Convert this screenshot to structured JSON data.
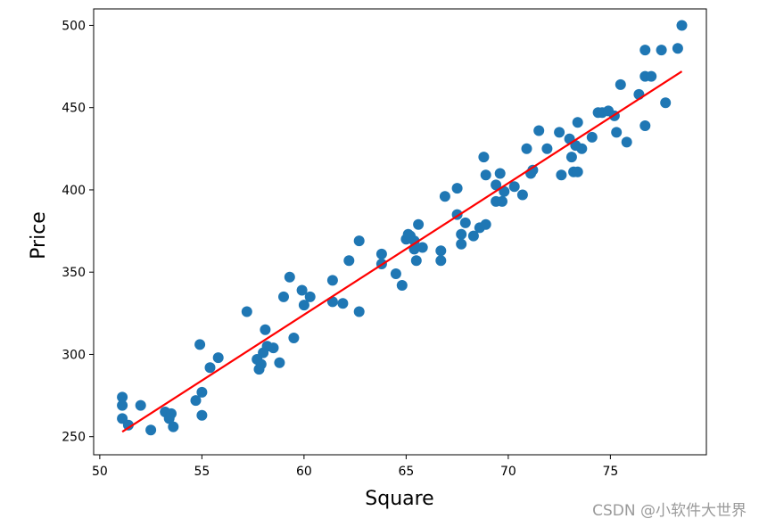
{
  "chart_data": {
    "type": "scatter",
    "xlabel": "Square",
    "ylabel": "Price",
    "xlim": [
      49.7,
      79.7
    ],
    "ylim": [
      239,
      510
    ],
    "xticks": [
      50,
      55,
      60,
      65,
      70,
      75
    ],
    "yticks": [
      250,
      300,
      350,
      400,
      450,
      500
    ],
    "grid": false,
    "colors": {
      "points": "#1f77b4",
      "fit_line": "#ff0000"
    },
    "series": [
      {
        "type": "scatter",
        "x": [
          51.1,
          51.1,
          51.1,
          51.4,
          52.0,
          52.5,
          53.2,
          53.5,
          53.4,
          53.6,
          54.7,
          54.9,
          55.0,
          55.0,
          55.4,
          55.8,
          57.2,
          57.7,
          57.8,
          57.9,
          58.0,
          58.1,
          58.2,
          58.5,
          58.8,
          59.0,
          59.3,
          59.5,
          59.9,
          60.0,
          60.3,
          61.4,
          61.4,
          61.9,
          62.2,
          62.7,
          62.7,
          63.8,
          63.8,
          64.5,
          64.8,
          65.0,
          65.1,
          65.2,
          65.4,
          65.4,
          65.5,
          65.6,
          65.8,
          66.7,
          66.7,
          66.9,
          67.5,
          67.5,
          67.7,
          67.7,
          67.9,
          68.3,
          68.6,
          68.8,
          68.9,
          68.9,
          69.4,
          69.4,
          69.6,
          69.7,
          69.8,
          70.3,
          70.7,
          70.9,
          71.1,
          71.2,
          71.5,
          71.9,
          72.5,
          72.6,
          73.0,
          73.1,
          73.2,
          73.3,
          73.4,
          73.4,
          73.6,
          74.1,
          74.4,
          74.6,
          74.9,
          75.2,
          75.3,
          75.5,
          75.8,
          76.4,
          76.7,
          76.7,
          76.7,
          77.0,
          77.5,
          77.7,
          78.3,
          78.5
        ],
        "y": [
          274,
          269,
          261,
          257,
          269,
          254,
          265,
          264,
          261,
          256,
          272,
          306,
          277,
          263,
          292,
          298,
          326,
          297,
          291,
          294,
          301,
          315,
          305,
          304,
          295,
          335,
          347,
          310,
          339,
          330,
          335,
          345,
          332,
          331,
          357,
          369,
          326,
          361,
          355,
          349,
          342,
          370,
          373,
          372,
          364,
          369,
          357,
          379,
          365,
          363,
          357,
          396,
          385,
          401,
          373,
          367,
          380,
          372,
          377,
          420,
          379,
          409,
          403,
          393,
          410,
          393,
          399,
          402,
          397,
          425,
          410,
          412,
          436,
          425,
          435,
          409,
          431,
          420,
          411,
          427,
          441,
          411,
          425,
          432,
          447,
          447,
          448,
          445,
          435,
          464,
          429,
          458,
          485,
          469,
          439,
          469,
          485,
          453,
          486,
          500
        ]
      },
      {
        "type": "line",
        "x": [
          51.1,
          78.5
        ],
        "y": [
          253,
          472
        ]
      }
    ]
  },
  "watermark": "CSDN @小软件大世界"
}
